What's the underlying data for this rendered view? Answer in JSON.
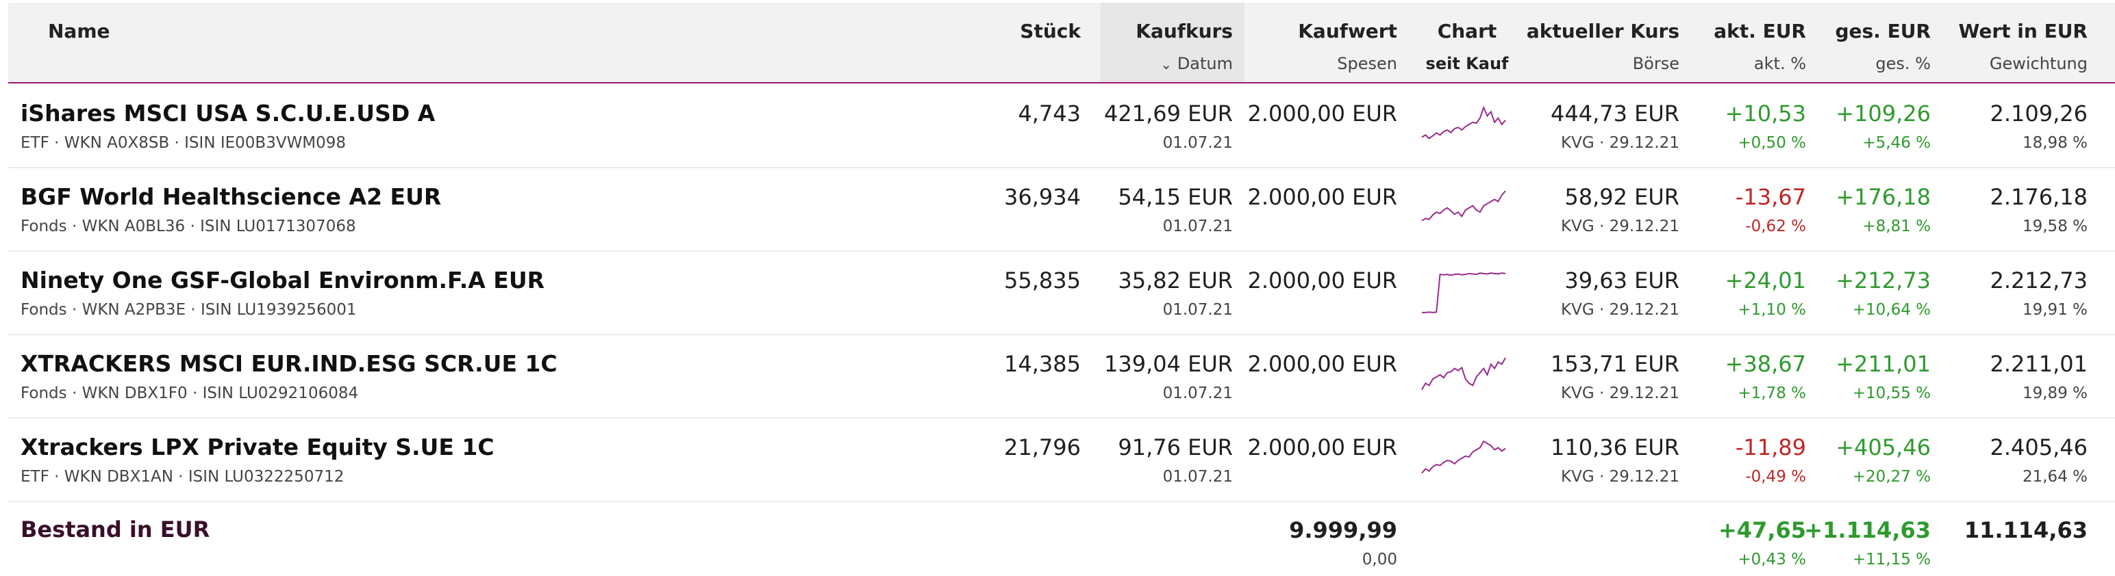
{
  "header": {
    "name": "Name",
    "stueck": "Stück",
    "kaufkurs": "Kaufkurs",
    "kaufkurs_sub": "Datum",
    "kaufwert": "Kaufwert",
    "kaufwert_sub": "Spesen",
    "chart": "Chart",
    "chart_sub": "seit Kauf",
    "kurs": "aktueller Kurs",
    "kurs_sub": "Börse",
    "akt": "akt. EUR",
    "akt_sub": "akt. %",
    "ges": "ges. EUR",
    "ges_sub": "ges. %",
    "wert": "Wert in EUR",
    "wert_sub": "Gewichtung"
  },
  "colors": {
    "accent": "#a0166e",
    "positive": "#2e9a2e",
    "negative": "#c02626",
    "sparkline": "#9b2a8e"
  },
  "rows": [
    {
      "name": "iShares MSCI USA S.C.U.E.USD A",
      "meta": "ETF · WKN A0X8SB · ISIN IE00B3VWM098",
      "stueck": "4,743",
      "kaufkurs": "421,69 EUR",
      "datum": "01.07.21",
      "kaufwert": "2.000,00 EUR",
      "kurs": "444,73 EUR",
      "boerse": "KVG · 29.12.21",
      "akt_eur": "+10,53",
      "akt_pct": "+0,50 %",
      "ges_eur": "+109,26",
      "ges_pct": "+5,46 %",
      "wert": "2.109,26",
      "gewichtung": "18,98 %",
      "akt_sign": "pos",
      "ges_sign": "pos",
      "spark": [
        0.25,
        0.3,
        0.22,
        0.28,
        0.35,
        0.3,
        0.38,
        0.42,
        0.36,
        0.45,
        0.48,
        0.42,
        0.5,
        0.55,
        0.6,
        0.58,
        0.7,
        0.95,
        0.75,
        0.85,
        0.6,
        0.7,
        0.55,
        0.65
      ]
    },
    {
      "name": "BGF World Healthscience A2 EUR",
      "meta": "Fonds · WKN A0BL36 · ISIN LU0171307068",
      "stueck": "36,934",
      "kaufkurs": "54,15 EUR",
      "datum": "01.07.21",
      "kaufwert": "2.000,00 EUR",
      "kurs": "58,92 EUR",
      "boerse": "KVG · 29.12.21",
      "akt_eur": "-13,67",
      "akt_pct": "-0,62 %",
      "ges_eur": "+176,18",
      "ges_pct": "+8,81 %",
      "wert": "2.176,18",
      "gewichtung": "19,58 %",
      "akt_sign": "neg",
      "ges_sign": "pos",
      "spark": [
        0.25,
        0.3,
        0.28,
        0.38,
        0.45,
        0.42,
        0.5,
        0.55,
        0.48,
        0.4,
        0.45,
        0.35,
        0.5,
        0.55,
        0.6,
        0.5,
        0.45,
        0.6,
        0.65,
        0.7,
        0.75,
        0.7,
        0.85,
        0.95
      ]
    },
    {
      "name": "Ninety One GSF-Global Environm.F.A EUR",
      "meta": "Fonds · WKN A2PB3E · ISIN LU1939256001",
      "stueck": "55,835",
      "kaufkurs": "35,82 EUR",
      "datum": "01.07.21",
      "kaufwert": "2.000,00 EUR",
      "kurs": "39,63 EUR",
      "boerse": "KVG · 29.12.21",
      "akt_eur": "+24,01",
      "akt_pct": "+1,10 %",
      "ges_eur": "+212,73",
      "ges_pct": "+10,64 %",
      "wert": "2.212,73",
      "gewichtung": "19,91 %",
      "akt_sign": "pos",
      "ges_sign": "pos",
      "spark": [
        0.05,
        0.05,
        0.06,
        0.05,
        0.06,
        0.95,
        0.94,
        0.95,
        0.93,
        0.95,
        0.96,
        0.94,
        0.95,
        0.97,
        0.96,
        0.95,
        0.98,
        0.97,
        0.96,
        0.98,
        0.97,
        0.96,
        0.98,
        0.97
      ]
    },
    {
      "name": "XTRACKERS MSCI EUR.IND.ESG SCR.UE 1C",
      "meta": "Fonds · WKN DBX1F0 · ISIN LU0292106084",
      "stueck": "14,385",
      "kaufkurs": "139,04 EUR",
      "datum": "01.07.21",
      "kaufwert": "2.000,00 EUR",
      "kurs": "153,71 EUR",
      "boerse": "KVG · 29.12.21",
      "akt_eur": "+38,67",
      "akt_pct": "+1,78 %",
      "ges_eur": "+211,01",
      "ges_pct": "+10,55 %",
      "wert": "2.211,01",
      "gewichtung": "19,89 %",
      "akt_sign": "pos",
      "ges_sign": "pos",
      "spark": [
        0.2,
        0.35,
        0.3,
        0.45,
        0.5,
        0.55,
        0.48,
        0.6,
        0.62,
        0.7,
        0.65,
        0.72,
        0.45,
        0.35,
        0.3,
        0.5,
        0.6,
        0.7,
        0.55,
        0.8,
        0.7,
        0.85,
        0.8,
        0.95
      ]
    },
    {
      "name": "Xtrackers LPX Private Equity S.UE 1C",
      "meta": "ETF · WKN DBX1AN · ISIN LU0322250712",
      "stueck": "21,796",
      "kaufkurs": "91,76 EUR",
      "datum": "01.07.21",
      "kaufwert": "2.000,00 EUR",
      "kurs": "110,36 EUR",
      "boerse": "KVG · 29.12.21",
      "akt_eur": "-11,89",
      "akt_pct": "-0,49 %",
      "ges_eur": "+405,46",
      "ges_pct": "+20,27 %",
      "wert": "2.405,46",
      "gewichtung": "21,64 %",
      "akt_sign": "neg",
      "ges_sign": "pos",
      "spark": [
        0.2,
        0.3,
        0.25,
        0.35,
        0.4,
        0.38,
        0.45,
        0.5,
        0.48,
        0.42,
        0.5,
        0.55,
        0.6,
        0.58,
        0.7,
        0.75,
        0.8,
        0.95,
        0.9,
        0.85,
        0.75,
        0.8,
        0.72,
        0.78
      ]
    }
  ],
  "footer": {
    "label": "Bestand in EUR",
    "kaufwert": "9.999,99",
    "spesen": "0,00",
    "akt_eur": "+47,65",
    "akt_pct": "+0,43 %",
    "ges_eur": "+1.114,63",
    "ges_pct": "+11,15 %",
    "wert": "11.114,63"
  }
}
